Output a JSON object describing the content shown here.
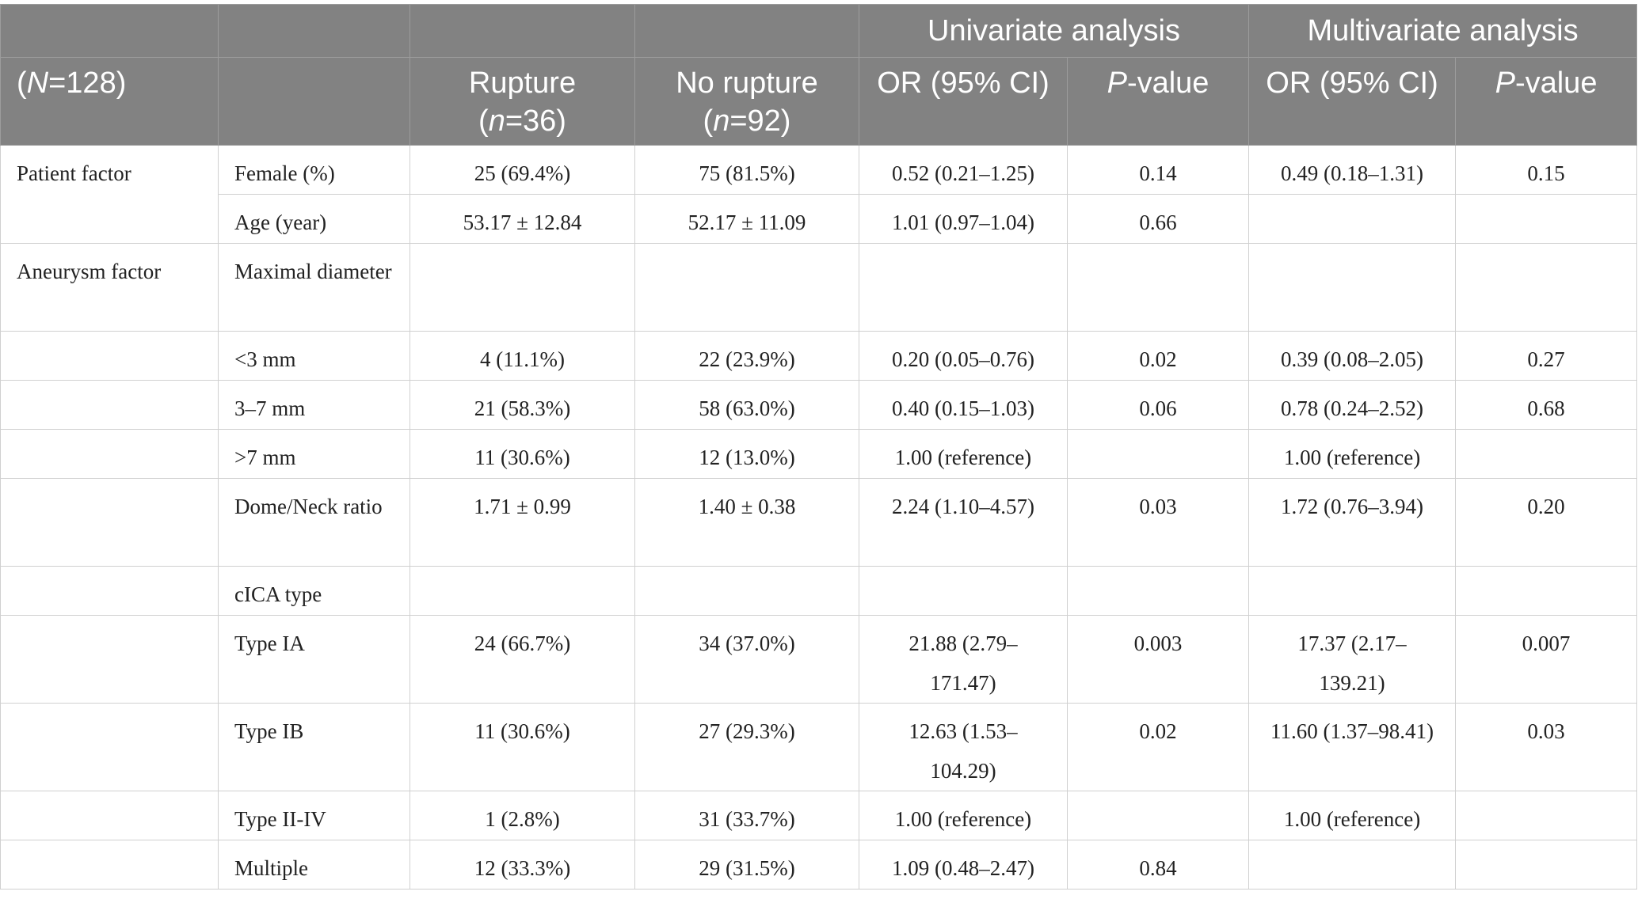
{
  "header": {
    "group_univariate": "Univariate analysis",
    "group_multivariate": "Multivariate analysis",
    "n_total_prefix": "(",
    "n_total_var": "N",
    "n_total_value": "=128)",
    "rupture_label": "Rupture",
    "rupture_n_prefix": "(",
    "rupture_n_var": "n",
    "rupture_n_value": "=36)",
    "norupture_label": "No rupture",
    "norupture_n_prefix": "(",
    "norupture_n_var": "n",
    "norupture_n_value": "=92)",
    "uni_or": "OR (95% CI)",
    "uni_p_var": "P",
    "uni_p_suffix": "-value",
    "multi_or": "OR (95% CI)",
    "multi_p_var": "P",
    "multi_p_suffix": "-value"
  },
  "rows": [
    {
      "group": "Patient factor",
      "variable": "Female (%)",
      "rupture": "25 (69.4%)",
      "no_rupture": "75 (81.5%)",
      "uni_or": "0.52 (0.21–1.25)",
      "uni_p": "0.14",
      "multi_or": "0.49 (0.18–1.31)",
      "multi_p": "0.15"
    },
    {
      "group": "",
      "variable": "Age (year)",
      "rupture": "53.17 ± 12.84",
      "no_rupture": "52.17 ± 11.09",
      "uni_or": "1.01 (0.97–1.04)",
      "uni_p": "0.66",
      "multi_or": "",
      "multi_p": ""
    },
    {
      "group": "Aneurysm factor",
      "variable": "Maximal diameter",
      "rupture": "",
      "no_rupture": "",
      "uni_or": "",
      "uni_p": "",
      "multi_or": "",
      "multi_p": ""
    },
    {
      "group": "",
      "variable": "<3 mm",
      "rupture": "4 (11.1%)",
      "no_rupture": "22 (23.9%)",
      "uni_or": "0.20 (0.05–0.76)",
      "uni_p": "0.02",
      "multi_or": "0.39 (0.08–2.05)",
      "multi_p": "0.27"
    },
    {
      "group": "",
      "variable": "3–7 mm",
      "rupture": "21 (58.3%)",
      "no_rupture": "58 (63.0%)",
      "uni_or": "0.40 (0.15–1.03)",
      "uni_p": "0.06",
      "multi_or": "0.78 (0.24–2.52)",
      "multi_p": "0.68"
    },
    {
      "group": "",
      "variable": ">7 mm",
      "rupture": "11 (30.6%)",
      "no_rupture": "12 (13.0%)",
      "uni_or": "1.00 (reference)",
      "uni_p": "",
      "multi_or": "1.00 (reference)",
      "multi_p": ""
    },
    {
      "group": "",
      "variable": "Dome/Neck ratio",
      "rupture": "1.71 ± 0.99",
      "no_rupture": "1.40 ± 0.38",
      "uni_or": "2.24 (1.10–4.57)",
      "uni_p": "0.03",
      "multi_or": "1.72 (0.76–3.94)",
      "multi_p": "0.20"
    },
    {
      "group": "",
      "variable": "cICA type",
      "rupture": "",
      "no_rupture": "",
      "uni_or": "",
      "uni_p": "",
      "multi_or": "",
      "multi_p": ""
    },
    {
      "group": "",
      "variable": "Type IA",
      "rupture": "24 (66.7%)",
      "no_rupture": "34 (37.0%)",
      "uni_or": "21.88 (2.79–171.47)",
      "uni_p": "0.003",
      "multi_or": "17.37 (2.17–139.21)",
      "multi_p": "0.007"
    },
    {
      "group": "",
      "variable": "Type IB",
      "rupture": "11 (30.6%)",
      "no_rupture": "27 (29.3%)",
      "uni_or": "12.63 (1.53–104.29)",
      "uni_p": "0.02",
      "multi_or": "11.60 (1.37–98.41)",
      "multi_p": "0.03"
    },
    {
      "group": "",
      "variable": "Type II-IV",
      "rupture": "1 (2.8%)",
      "no_rupture": "31 (33.7%)",
      "uni_or": "1.00 (reference)",
      "uni_p": "",
      "multi_or": "1.00 (reference)",
      "multi_p": ""
    },
    {
      "group": "",
      "variable": "Multiple",
      "rupture": "12 (33.3%)",
      "no_rupture": "29 (31.5%)",
      "uni_or": "1.09 (0.48–2.47)",
      "uni_p": "0.84",
      "multi_or": "",
      "multi_p": ""
    }
  ]
}
